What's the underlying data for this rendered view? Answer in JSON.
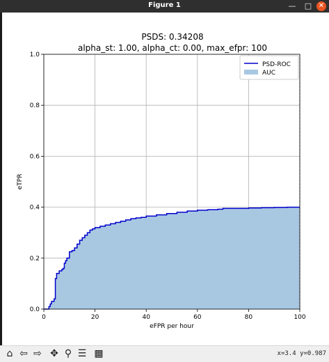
{
  "window": {
    "title": "Figure 1"
  },
  "toolbar": {
    "tools": [
      "home-icon",
      "back-icon",
      "forward-icon",
      "pan-icon",
      "zoom-icon",
      "configure-icon",
      "save-icon"
    ],
    "coords": "x=3.4  y=0.987"
  },
  "chart_data": {
    "type": "line",
    "title": "PSDS: 0.34208",
    "subtitle": "alpha_st: 1.00, alpha_ct: 0.00, max_efpr: 100",
    "xlabel": "eFPR per hour",
    "ylabel": "eTPR",
    "xlim": [
      0,
      100
    ],
    "ylim": [
      0,
      1.0
    ],
    "xticks": [
      "0",
      "20",
      "40",
      "60",
      "80",
      "100"
    ],
    "yticks": [
      "0.0",
      "0.2",
      "0.4",
      "0.6",
      "0.8",
      "1.0"
    ],
    "grid": true,
    "legend_position": "top-right",
    "legend": [
      "PSD-ROC",
      "AUC"
    ],
    "series": [
      {
        "name": "PSD-ROC",
        "color": "#0000cc",
        "fill_color": "#a8c8e2",
        "x": [
          0,
          1.5,
          2,
          2.5,
          3,
          4,
          4.5,
          5,
          6,
          7,
          7.5,
          8,
          8.5,
          9,
          10,
          11,
          12,
          13,
          14,
          15,
          16,
          17,
          18,
          19,
          20,
          22,
          24,
          26,
          28,
          30,
          32,
          34,
          36,
          38,
          40,
          44,
          48,
          52,
          56,
          60,
          64,
          68,
          70,
          74,
          80,
          85,
          90,
          95,
          100
        ],
        "y": [
          0,
          0,
          0.01,
          0.02,
          0.03,
          0.04,
          0.12,
          0.14,
          0.15,
          0.155,
          0.16,
          0.18,
          0.19,
          0.2,
          0.225,
          0.23,
          0.24,
          0.255,
          0.27,
          0.28,
          0.29,
          0.3,
          0.31,
          0.315,
          0.32,
          0.325,
          0.33,
          0.335,
          0.34,
          0.345,
          0.35,
          0.355,
          0.358,
          0.36,
          0.365,
          0.37,
          0.375,
          0.38,
          0.385,
          0.388,
          0.39,
          0.392,
          0.395,
          0.395,
          0.397,
          0.398,
          0.399,
          0.4,
          0.4
        ]
      }
    ]
  }
}
